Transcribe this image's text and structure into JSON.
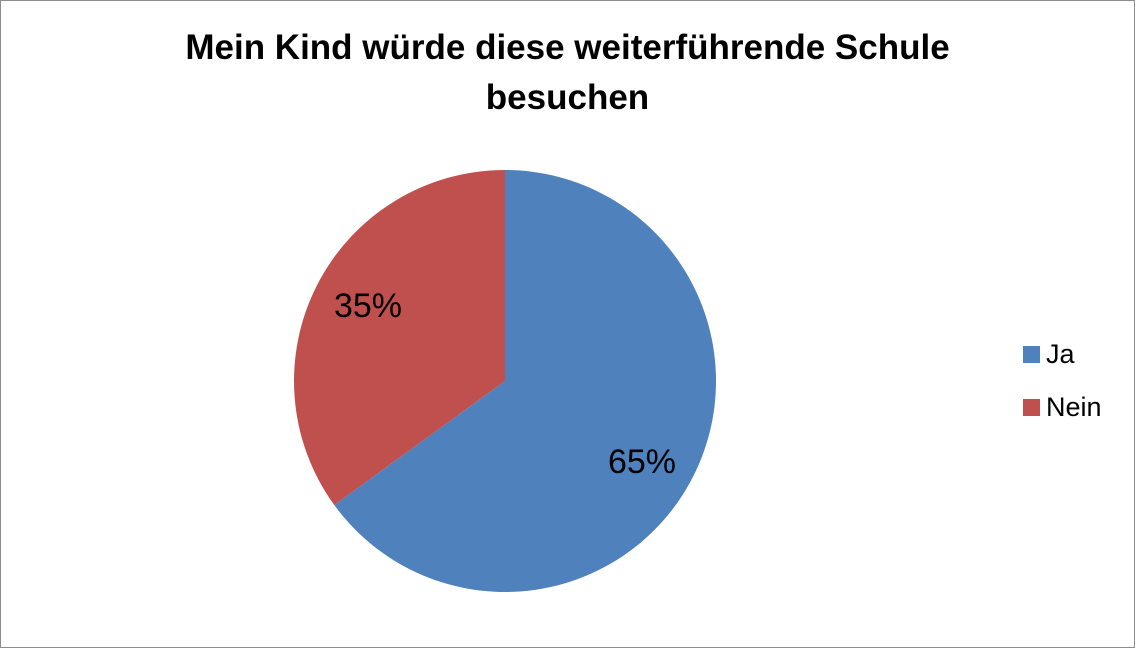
{
  "chart_data": {
    "type": "pie",
    "title": "Mein Kind würde diese weiterführende Schule besuchen",
    "title_lines": [
      "Mein Kind würde diese weiterführende Schule",
      "besuchen"
    ],
    "categories": [
      "Ja",
      "Nein"
    ],
    "values": [
      65,
      35
    ],
    "data_labels": [
      "65%",
      "35%"
    ],
    "colors": [
      "#4f81bd",
      "#c0504d"
    ],
    "legend": "right",
    "start_angle": "12 o'clock, clockwise"
  }
}
